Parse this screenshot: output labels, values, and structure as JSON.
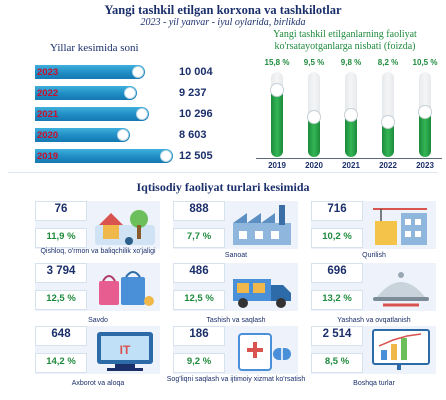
{
  "header": {
    "title": "Yangi tashkil etilgan korxona va tashkilotlar",
    "subtitle": "2023 - yil yanvar - iyul oylarida, birlikda"
  },
  "chart_data": [
    {
      "type": "bar",
      "orientation": "horizontal",
      "title": "Yillar kesimida soni",
      "categories": [
        "2023",
        "2022",
        "2021",
        "2020",
        "2019"
      ],
      "values": [
        10004,
        9237,
        10296,
        8603,
        12505
      ],
      "value_labels": [
        "10 004",
        "9 237",
        "10 296",
        "8 603",
        "12 505"
      ],
      "xlim": [
        0,
        12505
      ],
      "colors": {
        "bar": "#1f8cc4",
        "label": "#c8102e"
      }
    },
    {
      "type": "bar",
      "orientation": "vertical",
      "title": "Yangi tashkil etilganlarning faoliyat ko'rsatayotganlarga nisbati (foizda)",
      "categories": [
        "2019",
        "2020",
        "2021",
        "2022",
        "2023"
      ],
      "values": [
        15.8,
        9.5,
        9.8,
        8.2,
        10.5
      ],
      "value_labels": [
        "15,8 %",
        "9,5 %",
        "9,8 %",
        "8,2 %",
        "10,5 %"
      ],
      "ylim": [
        0,
        20
      ],
      "colors": {
        "bar": "#2aa34a"
      }
    },
    {
      "type": "table",
      "title": "Iqtisodiy faoliyat turlari kesimida",
      "rows": [
        {
          "label": "Qishloq, o'rmon va baliqchilik xo'jaligi",
          "value": "76",
          "percent": "11,9 %",
          "icon": "farm-icon"
        },
        {
          "label": "Sanoat",
          "value": "888",
          "percent": "7,7 %",
          "icon": "factory-icon"
        },
        {
          "label": "Qurilish",
          "value": "716",
          "percent": "10,2 %",
          "icon": "construction-icon"
        },
        {
          "label": "Savdo",
          "value": "3 794",
          "percent": "12,5 %",
          "icon": "shopping-icon"
        },
        {
          "label": "Tashish va saqlash",
          "value": "486",
          "percent": "12,5 %",
          "icon": "truck-icon"
        },
        {
          "label": "Yashash va ovqatlanish",
          "value": "696",
          "percent": "13,2 %",
          "icon": "cloche-icon"
        },
        {
          "label": "Axborot va aloqa",
          "value": "648",
          "percent": "14,2 %",
          "icon": "it-icon"
        },
        {
          "label": "Sog'liqni saqlash va ijtimoiy xizmat ko'rsatish",
          "value": "186",
          "percent": "9,2 %",
          "icon": "health-icon"
        },
        {
          "label": "Boshqa turlar",
          "value": "2 514",
          "percent": "8,5 %",
          "icon": "chart-board-icon"
        }
      ]
    }
  ]
}
